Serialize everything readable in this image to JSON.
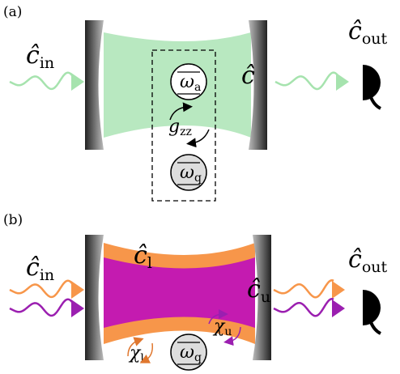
{
  "panel_a": {
    "label": "(a)",
    "input": {
      "symbol": "ĉ",
      "sub": "in"
    },
    "output": {
      "symbol": "ĉ",
      "sub": "out"
    },
    "cavity": "ĉ",
    "mode_a": {
      "symbol": "ω",
      "sub": "a"
    },
    "coupling": {
      "symbol": "g",
      "sub": "zz"
    },
    "mode_q": {
      "symbol": "ω",
      "sub": "q"
    }
  },
  "panel_b": {
    "label": "(b)",
    "input": {
      "symbol": "ĉ",
      "sub": "in"
    },
    "output": {
      "symbol": "ĉ",
      "sub": "out"
    },
    "lower_mode": {
      "symbol": "ĉ",
      "sub": "l"
    },
    "upper_mode": {
      "symbol": "ĉ",
      "sub": "u"
    },
    "chi_l": {
      "symbol": "χ",
      "sub": "l"
    },
    "chi_u": {
      "symbol": "χ",
      "sub": "u"
    },
    "mode_q": {
      "symbol": "ω",
      "sub": "q"
    }
  }
}
